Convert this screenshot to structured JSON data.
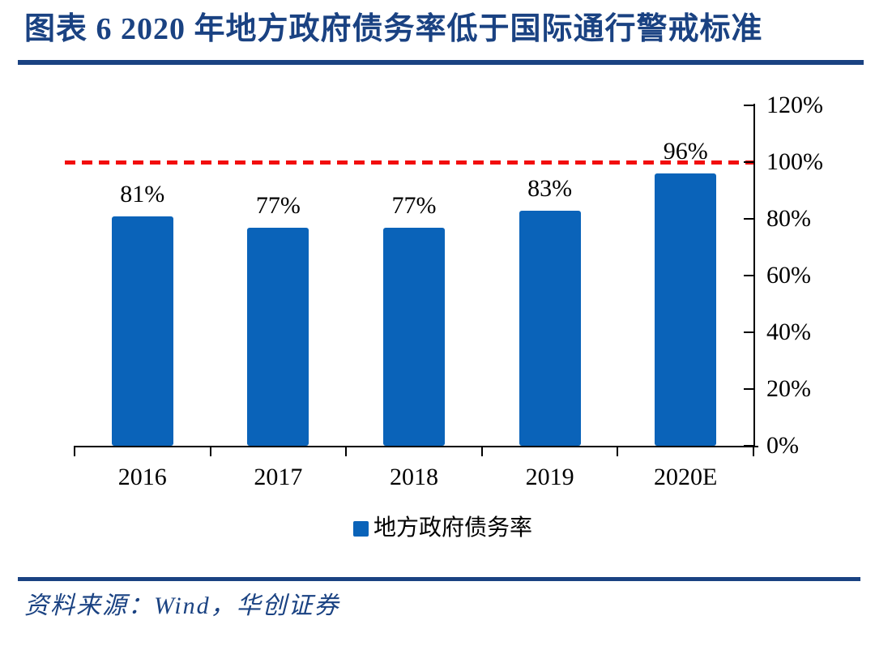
{
  "header": {
    "title": "图表 6  2020 年地方政府债务率低于国际通行警戒标准"
  },
  "chart_data": {
    "type": "bar",
    "categories": [
      "2016",
      "2017",
      "2018",
      "2019",
      "2020E"
    ],
    "series": [
      {
        "name": "地方政府债务率",
        "values": [
          81,
          77,
          77,
          83,
          96
        ]
      }
    ],
    "value_labels": [
      "81%",
      "77%",
      "77%",
      "83%",
      "96%"
    ],
    "y_tick_values": [
      0,
      20,
      40,
      60,
      80,
      100,
      120
    ],
    "y_tick_labels": [
      "0%",
      "20%",
      "40%",
      "60%",
      "80%",
      "100%",
      "120%"
    ],
    "ylim": [
      0,
      120
    ],
    "axis_side": "right",
    "grid": false,
    "reference_line": {
      "value": 100,
      "style": "dashed"
    },
    "legend": {
      "position": "bottom",
      "label": "地方政府债务率"
    }
  },
  "footer": {
    "source": "资料来源：Wind，华创证券"
  },
  "colors": {
    "bar_blue": "#0a63b9",
    "navy": "#1a4282",
    "red": "#f20d0d",
    "axis_black": "#000000"
  }
}
